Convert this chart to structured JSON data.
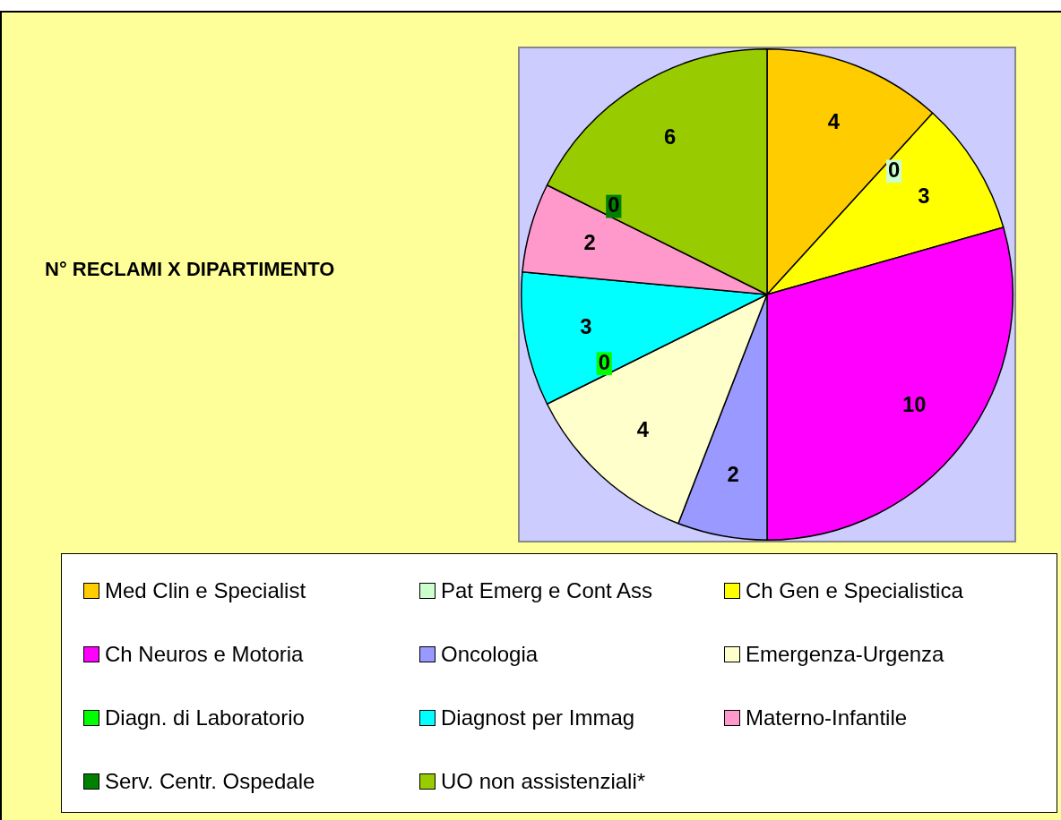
{
  "chart_data": {
    "type": "pie",
    "title": "N° RECLAMI X DIPARTIMENTO",
    "categories": [
      "Med Clin e Specialist",
      "Pat Emerg e Cont Ass",
      "Ch Gen e Specialistica",
      "Ch Neuros e Motoria",
      "Oncologia",
      "Emergenza-Urgenza",
      "Diagn. di Laboratorio",
      "Diagnost per Immag",
      "Materno-Infantile",
      "Serv. Centr. Ospedale",
      "UO non assistenziali*"
    ],
    "values": [
      4,
      0,
      3,
      10,
      2,
      4,
      0,
      3,
      2,
      0,
      6
    ],
    "colors": [
      "#ffcc00",
      "#ccffcc",
      "#ffff00",
      "#ff00ff",
      "#9999ff",
      "#ffffcc",
      "#00ff00",
      "#00ffff",
      "#ff99cc",
      "#008000",
      "#99cc00"
    ],
    "value_labels": [
      "4",
      "0",
      "3",
      "10",
      "2",
      "4",
      "0",
      "3",
      "2",
      "0",
      "6"
    ],
    "legend": "bottom"
  }
}
